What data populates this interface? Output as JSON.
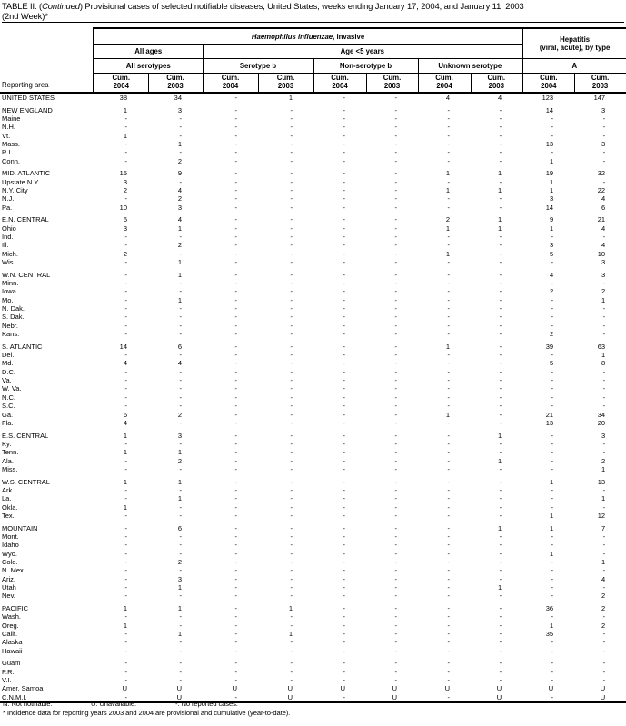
{
  "title": {
    "p1": "TABLE II. (",
    "p2": "Continued",
    "p3": ") Provisional cases of selected notifiable diseases, United States, weeks ending January 17, 2004, and January 11, 2003",
    "line2": "(2nd Week)*"
  },
  "table": {
    "header": {
      "reporting_area": "Reporting area",
      "disease_italic": "Haemophilus influenzae",
      "disease_rest": ", invasive",
      "hepatitis_line1": "Hepatitis",
      "hepatitis_line2": "(viral, acute), by type",
      "all_ages": "All ages",
      "age_lt5": "Age <5 years",
      "subgroups": [
        "All serotypes",
        "Serotype b",
        "Non-serotype b",
        "Unknown serotype",
        "A"
      ],
      "cum_label": "Cum.",
      "years": [
        "2004",
        "2003"
      ]
    },
    "groups": [
      [
        {
          "area": "UNITED STATES",
          "values": [
            "38",
            "34",
            "-",
            "1",
            "-",
            "-",
            "4",
            "4",
            "123",
            "147"
          ]
        }
      ],
      [
        {
          "area": "NEW ENGLAND",
          "values": [
            "1",
            "3",
            "-",
            "-",
            "-",
            "-",
            "-",
            "-",
            "14",
            "3"
          ]
        },
        {
          "area": "Maine",
          "values": [
            "-",
            "-",
            "-",
            "-",
            "-",
            "-",
            "-",
            "-",
            "-",
            "-"
          ]
        },
        {
          "area": "N.H.",
          "values": [
            "-",
            "-",
            "-",
            "-",
            "-",
            "-",
            "-",
            "-",
            "-",
            "-"
          ]
        },
        {
          "area": "Vt.",
          "values": [
            "1",
            "-",
            "-",
            "-",
            "-",
            "-",
            "-",
            "-",
            "-",
            "-"
          ]
        },
        {
          "area": "Mass.",
          "values": [
            "-",
            "1",
            "-",
            "-",
            "-",
            "-",
            "-",
            "-",
            "13",
            "3"
          ]
        },
        {
          "area": "R.I.",
          "values": [
            "-",
            "-",
            "-",
            "-",
            "-",
            "-",
            "-",
            "-",
            "-",
            "-"
          ]
        },
        {
          "area": "Conn.",
          "values": [
            "-",
            "2",
            "-",
            "-",
            "-",
            "-",
            "-",
            "-",
            "1",
            "-"
          ]
        }
      ],
      [
        {
          "area": "MID. ATLANTIC",
          "values": [
            "15",
            "9",
            "-",
            "-",
            "-",
            "-",
            "1",
            "1",
            "19",
            "32"
          ]
        },
        {
          "area": "Upstate N.Y.",
          "values": [
            "3",
            "-",
            "-",
            "-",
            "-",
            "-",
            "-",
            "-",
            "1",
            "-"
          ]
        },
        {
          "area": "N.Y. City",
          "values": [
            "2",
            "4",
            "-",
            "-",
            "-",
            "-",
            "1",
            "1",
            "1",
            "22"
          ]
        },
        {
          "area": "N.J.",
          "values": [
            "-",
            "2",
            "-",
            "-",
            "-",
            "-",
            "-",
            "-",
            "3",
            "4"
          ]
        },
        {
          "area": "Pa.",
          "values": [
            "10",
            "3",
            "-",
            "-",
            "-",
            "-",
            "-",
            "-",
            "14",
            "6"
          ]
        }
      ],
      [
        {
          "area": "E.N. CENTRAL",
          "values": [
            "5",
            "4",
            "-",
            "-",
            "-",
            "-",
            "2",
            "1",
            "9",
            "21"
          ]
        },
        {
          "area": "Ohio",
          "values": [
            "3",
            "1",
            "-",
            "-",
            "-",
            "-",
            "1",
            "1",
            "1",
            "4"
          ]
        },
        {
          "area": "Ind.",
          "values": [
            "-",
            "-",
            "-",
            "-",
            "-",
            "-",
            "-",
            "-",
            "-",
            "-"
          ]
        },
        {
          "area": "Ill.",
          "values": [
            "-",
            "2",
            "-",
            "-",
            "-",
            "-",
            "-",
            "-",
            "3",
            "4"
          ]
        },
        {
          "area": "Mich.",
          "values": [
            "2",
            "-",
            "-",
            "-",
            "-",
            "-",
            "1",
            "-",
            "5",
            "10"
          ]
        },
        {
          "area": "Wis.",
          "values": [
            "-",
            "1",
            "-",
            "-",
            "-",
            "-",
            "-",
            "-",
            "-",
            "3"
          ]
        }
      ],
      [
        {
          "area": "W.N. CENTRAL",
          "values": [
            "-",
            "1",
            "-",
            "-",
            "-",
            "-",
            "-",
            "-",
            "4",
            "3"
          ]
        },
        {
          "area": "Minn.",
          "values": [
            "-",
            "-",
            "-",
            "-",
            "-",
            "-",
            "-",
            "-",
            "-",
            "-"
          ]
        },
        {
          "area": "Iowa",
          "values": [
            "-",
            "-",
            "-",
            "-",
            "-",
            "-",
            "-",
            "-",
            "2",
            "2"
          ]
        },
        {
          "area": "Mo.",
          "values": [
            "-",
            "1",
            "-",
            "-",
            "-",
            "-",
            "-",
            "-",
            "-",
            "1"
          ]
        },
        {
          "area": "N. Dak.",
          "values": [
            "-",
            "-",
            "-",
            "-",
            "-",
            "-",
            "-",
            "-",
            "-",
            "-"
          ]
        },
        {
          "area": "S. Dak.",
          "values": [
            "-",
            "-",
            "-",
            "-",
            "-",
            "-",
            "-",
            "-",
            "-",
            "-"
          ]
        },
        {
          "area": "Nebr.",
          "values": [
            "-",
            "-",
            "-",
            "-",
            "-",
            "-",
            "-",
            "-",
            "-",
            "-"
          ]
        },
        {
          "area": "Kans.",
          "values": [
            "-",
            "-",
            "-",
            "-",
            "-",
            "-",
            "-",
            "-",
            "2",
            "-"
          ]
        }
      ],
      [
        {
          "area": "S. ATLANTIC",
          "values": [
            "14",
            "6",
            "-",
            "-",
            "-",
            "-",
            "1",
            "-",
            "39",
            "63"
          ]
        },
        {
          "area": "Del.",
          "values": [
            "-",
            "-",
            "-",
            "-",
            "-",
            "-",
            "-",
            "-",
            "-",
            "1"
          ]
        },
        {
          "area": "Md.",
          "values": [
            "4",
            "4",
            "-",
            "-",
            "-",
            "-",
            "-",
            "-",
            "5",
            "8"
          ]
        },
        {
          "area": "D.C.",
          "values": [
            "-",
            "-",
            "-",
            "-",
            "-",
            "-",
            "-",
            "-",
            "-",
            "-"
          ]
        },
        {
          "area": "Va.",
          "values": [
            "-",
            "-",
            "-",
            "-",
            "-",
            "-",
            "-",
            "-",
            "-",
            "-"
          ]
        },
        {
          "area": "W. Va.",
          "values": [
            "-",
            "-",
            "-",
            "-",
            "-",
            "-",
            "-",
            "-",
            "-",
            "-"
          ]
        },
        {
          "area": "N.C.",
          "values": [
            "-",
            "-",
            "-",
            "-",
            "-",
            "-",
            "-",
            "-",
            "-",
            "-"
          ]
        },
        {
          "area": "S.C.",
          "values": [
            "-",
            "-",
            "-",
            "-",
            "-",
            "-",
            "-",
            "-",
            "-",
            "-"
          ]
        },
        {
          "area": "Ga.",
          "values": [
            "6",
            "2",
            "-",
            "-",
            "-",
            "-",
            "1",
            "-",
            "21",
            "34"
          ]
        },
        {
          "area": "Fla.",
          "values": [
            "4",
            "-",
            "-",
            "-",
            "-",
            "-",
            "-",
            "-",
            "13",
            "20"
          ]
        }
      ],
      [
        {
          "area": "E.S. CENTRAL",
          "values": [
            "1",
            "3",
            "-",
            "-",
            "-",
            "-",
            "-",
            "1",
            "-",
            "3"
          ]
        },
        {
          "area": "Ky.",
          "values": [
            "-",
            "-",
            "-",
            "-",
            "-",
            "-",
            "-",
            "-",
            "-",
            "-"
          ]
        },
        {
          "area": "Tenn.",
          "values": [
            "1",
            "1",
            "-",
            "-",
            "-",
            "-",
            "-",
            "-",
            "-",
            "-"
          ]
        },
        {
          "area": "Ala.",
          "values": [
            "-",
            "2",
            "-",
            "-",
            "-",
            "-",
            "-",
            "1",
            "-",
            "2"
          ]
        },
        {
          "area": "Miss.",
          "values": [
            "-",
            "-",
            "-",
            "-",
            "-",
            "-",
            "-",
            "-",
            "-",
            "1"
          ]
        }
      ],
      [
        {
          "area": "W.S. CENTRAL",
          "values": [
            "1",
            "1",
            "-",
            "-",
            "-",
            "-",
            "-",
            "-",
            "1",
            "13"
          ]
        },
        {
          "area": "Ark.",
          "values": [
            "-",
            "-",
            "-",
            "-",
            "-",
            "-",
            "-",
            "-",
            "-",
            "-"
          ]
        },
        {
          "area": "La.",
          "values": [
            "-",
            "1",
            "-",
            "-",
            "-",
            "-",
            "-",
            "-",
            "-",
            "1"
          ]
        },
        {
          "area": "Okla.",
          "values": [
            "1",
            "-",
            "-",
            "-",
            "-",
            "-",
            "-",
            "-",
            "-",
            "-"
          ]
        },
        {
          "area": "Tex.",
          "values": [
            "-",
            "-",
            "-",
            "-",
            "-",
            "-",
            "-",
            "-",
            "1",
            "12"
          ]
        }
      ],
      [
        {
          "area": "MOUNTAIN",
          "values": [
            "-",
            "6",
            "-",
            "-",
            "-",
            "-",
            "-",
            "1",
            "1",
            "7"
          ]
        },
        {
          "area": "Mont.",
          "values": [
            "-",
            "-",
            "-",
            "-",
            "-",
            "-",
            "-",
            "-",
            "-",
            "-"
          ]
        },
        {
          "area": "Idaho",
          "values": [
            "-",
            "-",
            "-",
            "-",
            "-",
            "-",
            "-",
            "-",
            "-",
            "-"
          ]
        },
        {
          "area": "Wyo.",
          "values": [
            "-",
            "-",
            "-",
            "-",
            "-",
            "-",
            "-",
            "-",
            "1",
            "-"
          ]
        },
        {
          "area": "Colo.",
          "values": [
            "-",
            "2",
            "-",
            "-",
            "-",
            "-",
            "-",
            "-",
            "-",
            "1"
          ]
        },
        {
          "area": "N. Mex.",
          "values": [
            "-",
            "-",
            "-",
            "-",
            "-",
            "-",
            "-",
            "-",
            "-",
            "-"
          ]
        },
        {
          "area": "Ariz.",
          "values": [
            "-",
            "3",
            "-",
            "-",
            "-",
            "-",
            "-",
            "-",
            "-",
            "4"
          ]
        },
        {
          "area": "Utah",
          "values": [
            "-",
            "1",
            "-",
            "-",
            "-",
            "-",
            "-",
            "1",
            "-",
            "-"
          ]
        },
        {
          "area": "Nev.",
          "values": [
            "-",
            "-",
            "-",
            "-",
            "-",
            "-",
            "-",
            "-",
            "-",
            "2"
          ]
        }
      ],
      [
        {
          "area": "PACIFIC",
          "values": [
            "1",
            "1",
            "-",
            "1",
            "-",
            "-",
            "-",
            "-",
            "36",
            "2"
          ]
        },
        {
          "area": "Wash.",
          "values": [
            "-",
            "-",
            "-",
            "-",
            "-",
            "-",
            "-",
            "-",
            "-",
            "-"
          ]
        },
        {
          "area": "Oreg.",
          "values": [
            "1",
            "-",
            "-",
            "-",
            "-",
            "-",
            "-",
            "-",
            "1",
            "2"
          ]
        },
        {
          "area": "Calif.",
          "values": [
            "-",
            "1",
            "-",
            "1",
            "-",
            "-",
            "-",
            "-",
            "35",
            "-"
          ]
        },
        {
          "area": "Alaska",
          "values": [
            "-",
            "-",
            "-",
            "-",
            "-",
            "-",
            "-",
            "-",
            "-",
            "-"
          ]
        },
        {
          "area": "Hawaii",
          "values": [
            "-",
            "-",
            "-",
            "-",
            "-",
            "-",
            "-",
            "-",
            "-",
            "-"
          ]
        }
      ],
      [
        {
          "area": "Guam",
          "values": [
            "-",
            "-",
            "-",
            "-",
            "-",
            "-",
            "-",
            "-",
            "-",
            "-"
          ]
        },
        {
          "area": "P.R.",
          "values": [
            "-",
            "-",
            "-",
            "-",
            "-",
            "-",
            "-",
            "-",
            "-",
            "-"
          ]
        },
        {
          "area": "V.I.",
          "values": [
            "-",
            "-",
            "-",
            "-",
            "-",
            "-",
            "-",
            "-",
            "-",
            "-"
          ]
        },
        {
          "area": "Amer. Samoa",
          "values": [
            "U",
            "U",
            "U",
            "U",
            "U",
            "U",
            "U",
            "U",
            "U",
            "U"
          ]
        },
        {
          "area": "C.N.M.I.",
          "values": [
            "-",
            "U",
            "-",
            "U",
            "-",
            "U",
            "-",
            "U",
            "-",
            "U"
          ]
        }
      ]
    ]
  },
  "footnotes": {
    "legend": [
      "N: Not notifiable.",
      "U: Unavailable.",
      "-: No reported cases."
    ],
    "note": "* Incidence data for reporting years 2003 and 2004 are provisional and cumulative (year-to-date)."
  }
}
